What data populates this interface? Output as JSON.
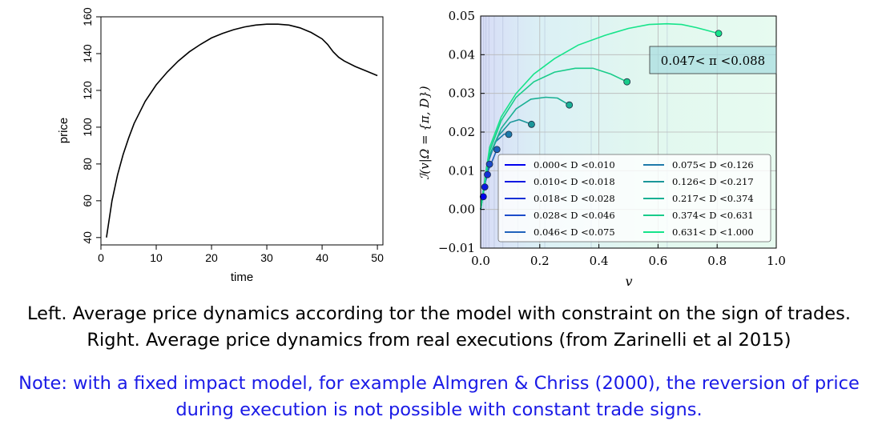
{
  "chart_data": [
    {
      "type": "line",
      "title": "",
      "xlabel": "time",
      "ylabel": "price",
      "xlim": [
        0,
        51
      ],
      "ylim": [
        36,
        160
      ],
      "xticks": [
        0,
        10,
        20,
        30,
        40,
        50
      ],
      "yticks": [
        40,
        60,
        80,
        100,
        120,
        140,
        160
      ],
      "grid": false,
      "series": [
        {
          "color": "#000000",
          "x": [
            1,
            2,
            3,
            4,
            5,
            6,
            8,
            10,
            12,
            14,
            16,
            18,
            20,
            22,
            24,
            26,
            28,
            30,
            32,
            34,
            36,
            38,
            40,
            41,
            42,
            43,
            44,
            46,
            48,
            50
          ],
          "y": [
            40,
            60,
            74,
            85,
            94,
            102,
            114,
            123,
            130,
            136,
            141,
            145,
            148.5,
            151,
            153,
            154.5,
            155.5,
            156,
            156,
            155.5,
            154,
            151.5,
            148,
            145,
            141,
            138,
            136,
            133,
            130.5,
            128
          ]
        }
      ]
    },
    {
      "type": "line",
      "title": "",
      "xlabel": "v",
      "ylabel": "ℐ(v|Ω = {π, D})",
      "xlim": [
        0,
        1
      ],
      "ylim": [
        -0.01,
        0.05
      ],
      "xticks": [
        "0.0",
        "0.2",
        "0.4",
        "0.6",
        "0.8",
        "1.0"
      ],
      "yticks": [
        "−0.01",
        "0.00",
        "0.01",
        "0.02",
        "0.03",
        "0.04",
        "0.05"
      ],
      "grid": true,
      "annotation": "0.047< π <0.088",
      "legend_position": "bottom-right",
      "series": [
        {
          "name": "0.000< D <0.010",
          "color": "#0000ee",
          "x": [
            0,
            0.004,
            0.009
          ],
          "y": [
            0,
            0.002,
            0.0033
          ]
        },
        {
          "name": "0.010< D <0.018",
          "color": "#0a18e2",
          "x": [
            0,
            0.006,
            0.014
          ],
          "y": [
            0,
            0.0035,
            0.0058
          ]
        },
        {
          "name": "0.018< D <0.028",
          "color": "#1330d6",
          "x": [
            0,
            0.01,
            0.023
          ],
          "y": [
            0,
            0.0055,
            0.009
          ]
        },
        {
          "name": "0.028< D <0.046",
          "color": "#1c4bca",
          "x": [
            0,
            0.015,
            0.03
          ],
          "y": [
            0,
            0.007,
            0.0117
          ]
        },
        {
          "name": "0.046< D <0.075",
          "color": "#2062bc",
          "x": [
            0,
            0.02,
            0.055
          ],
          "y": [
            0,
            0.009,
            0.0155
          ]
        },
        {
          "name": "0.075< D <0.126",
          "color": "#1e7aaa",
          "x": [
            0,
            0.02,
            0.05,
            0.08,
            0.095
          ],
          "y": [
            0,
            0.011,
            0.0175,
            0.0195,
            0.0194
          ]
        },
        {
          "name": "0.126< D <0.217",
          "color": "#1b9699",
          "x": [
            0,
            0.025,
            0.06,
            0.1,
            0.13,
            0.172
          ],
          "y": [
            0,
            0.013,
            0.019,
            0.0225,
            0.0232,
            0.022
          ]
        },
        {
          "name": "0.217< D <0.374",
          "color": "#1ab094",
          "x": [
            0,
            0.03,
            0.07,
            0.12,
            0.17,
            0.22,
            0.26,
            0.3
          ],
          "y": [
            0,
            0.014,
            0.021,
            0.026,
            0.0285,
            0.029,
            0.0288,
            0.027
          ]
        },
        {
          "name": "0.374< D <0.631",
          "color": "#19cc8a",
          "x": [
            0,
            0.03,
            0.07,
            0.12,
            0.18,
            0.25,
            0.32,
            0.38,
            0.44,
            0.495
          ],
          "y": [
            0,
            0.015,
            0.023,
            0.029,
            0.033,
            0.0355,
            0.0365,
            0.0365,
            0.035,
            0.033
          ]
        },
        {
          "name": "0.631< D <1.000",
          "color": "#16e48a",
          "x": [
            0,
            0.03,
            0.07,
            0.12,
            0.18,
            0.25,
            0.33,
            0.42,
            0.5,
            0.57,
            0.63,
            0.68,
            0.73,
            0.77,
            0.805
          ],
          "y": [
            0,
            0.016,
            0.024,
            0.03,
            0.035,
            0.039,
            0.0425,
            0.045,
            0.0468,
            0.0478,
            0.048,
            0.0478,
            0.047,
            0.0462,
            0.0455
          ]
        }
      ]
    }
  ],
  "caption": "Left. Average price dynamics according tor the model with constraint on the sign of trades. Right. Average price dynamics from real executions (from Zarinelli et al 2015)",
  "note": "Note: with a fixed impact model, for example Almgren & Chriss (2000), the reversion of price during execution is not possible with constant trade signs."
}
